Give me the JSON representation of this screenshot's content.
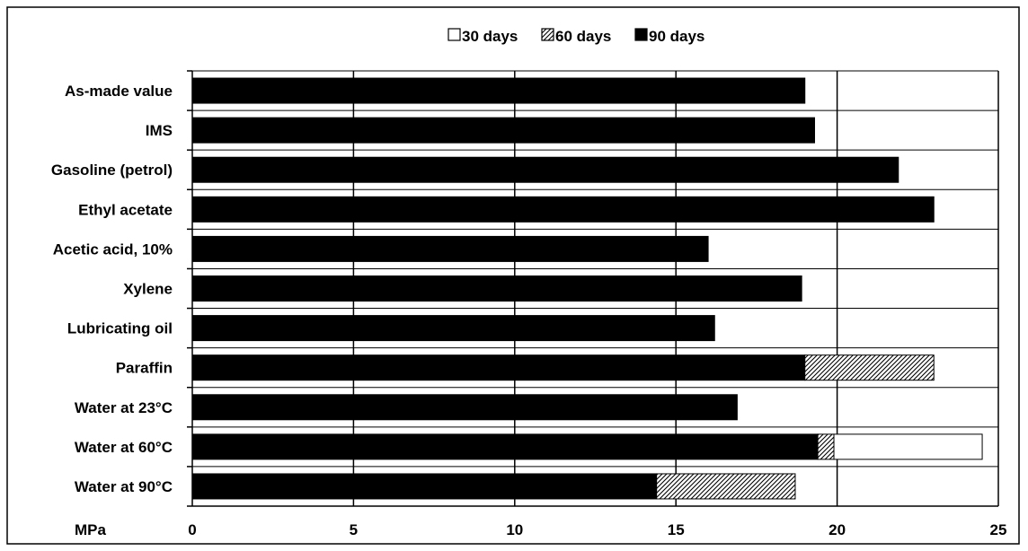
{
  "chart_data": {
    "type": "bar",
    "orientation": "horizontal",
    "stacked": true,
    "title": "",
    "xlabel": "MPa",
    "ylabel": "",
    "xlim": [
      0,
      25
    ],
    "x_ticks": [
      0,
      5,
      10,
      15,
      20,
      25
    ],
    "grid": "on",
    "legend_position": "top",
    "categories": [
      "As-made value",
      "IMS",
      "Gasoline (petrol)",
      "Ethyl acetate",
      "Acetic acid, 10%",
      "Xylene",
      "Lubricating oil",
      "Paraffin",
      "Water at 23°C",
      "Water at 60°C",
      "Water at 90°C"
    ],
    "series": [
      {
        "name": "90 days",
        "fill": "solid",
        "color": "#000000",
        "values": [
          19.0,
          19.3,
          21.9,
          23.0,
          16.0,
          18.9,
          16.2,
          19.0,
          16.9,
          19.4,
          14.4
        ]
      },
      {
        "name": "60 days",
        "fill": "hatched",
        "color": "#888888",
        "values": [
          0,
          0,
          0,
          0,
          0,
          0,
          0,
          4.0,
          0,
          0.5,
          4.3
        ]
      },
      {
        "name": "30 days",
        "fill": "white",
        "color": "#ffffff",
        "values": [
          0,
          0,
          0,
          0,
          0,
          0,
          0,
          0,
          0,
          4.6,
          0
        ]
      }
    ],
    "legend_order": [
      "30 days",
      "60 days",
      "90 days"
    ]
  }
}
